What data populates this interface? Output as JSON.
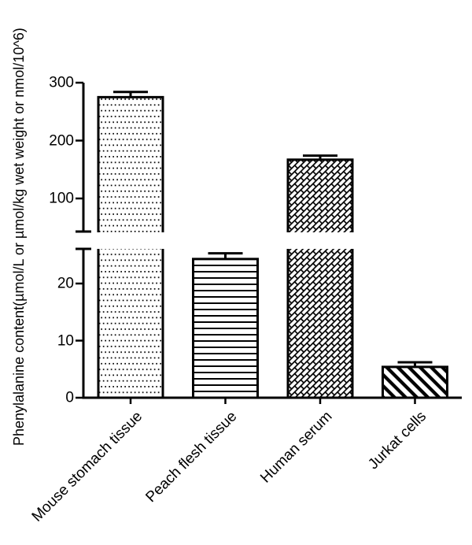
{
  "figure": {
    "background_color": "#ffffff",
    "ink_color": "#000000"
  },
  "chart_data": {
    "type": "bar",
    "title": "",
    "xlabel": "",
    "ylabel": "Phenylalanine content(µmol/L or µmol/kg wet weight or nmol/10^6)",
    "categories": [
      "Mouse stomach tissue",
      "Peach flesh tissue",
      "Human serum",
      "Jurkat cells"
    ],
    "series": [
      {
        "name": "Phenylalanine content",
        "values": [
          275,
          24.3,
          167,
          5.4
        ],
        "errors_plus": [
          9,
          1,
          7,
          0.8
        ],
        "fill_patterns": [
          "dots",
          "horizontal-lines",
          "diagonal-bricks",
          "diagonal-stripes"
        ]
      }
    ],
    "bar_fill": "#ffffff",
    "bar_stroke": "#000000",
    "error_bar_style": "upper-only-with-cap",
    "axis_break": true,
    "y_axis_segments": [
      {
        "range": [
          0,
          26
        ],
        "ticks": [
          0,
          10,
          20
        ],
        "tick_labels": [
          "0",
          "10",
          "20"
        ]
      },
      {
        "range": [
          43,
          300
        ],
        "ticks": [
          100,
          200,
          300
        ],
        "tick_labels": [
          "100",
          "200",
          "300"
        ]
      }
    ],
    "grid": false,
    "legend": null
  }
}
